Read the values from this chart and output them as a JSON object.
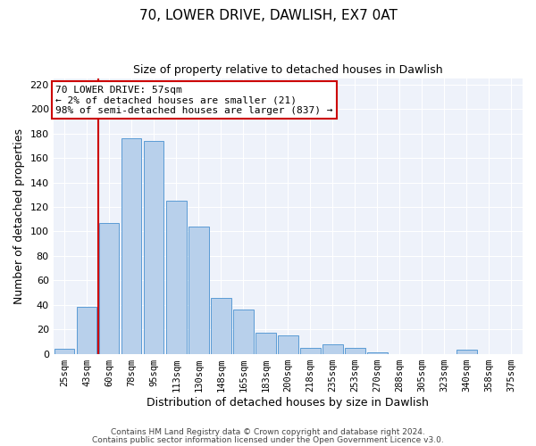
{
  "title1": "70, LOWER DRIVE, DAWLISH, EX7 0AT",
  "title2": "Size of property relative to detached houses in Dawlish",
  "xlabel": "Distribution of detached houses by size in Dawlish",
  "ylabel": "Number of detached properties",
  "bar_labels": [
    "25sqm",
    "43sqm",
    "60sqm",
    "78sqm",
    "95sqm",
    "113sqm",
    "130sqm",
    "148sqm",
    "165sqm",
    "183sqm",
    "200sqm",
    "218sqm",
    "235sqm",
    "253sqm",
    "270sqm",
    "288sqm",
    "305sqm",
    "323sqm",
    "340sqm",
    "358sqm",
    "375sqm"
  ],
  "bar_values": [
    4,
    38,
    107,
    176,
    174,
    125,
    104,
    46,
    36,
    17,
    15,
    5,
    8,
    5,
    1,
    0,
    0,
    0,
    3,
    0,
    0
  ],
  "bar_color": "#b8d0eb",
  "bar_edgecolor": "#5b9bd5",
  "vline_color": "#cc0000",
  "vline_pos": 1.5,
  "ylim": [
    0,
    225
  ],
  "yticks": [
    0,
    20,
    40,
    60,
    80,
    100,
    120,
    140,
    160,
    180,
    200,
    220
  ],
  "annotation_line1": "70 LOWER DRIVE: 57sqm",
  "annotation_line2": "← 2% of detached houses are smaller (21)",
  "annotation_line3": "98% of semi-detached houses are larger (837) →",
  "annotation_box_color": "#cc0000",
  "footer1": "Contains HM Land Registry data © Crown copyright and database right 2024.",
  "footer2": "Contains public sector information licensed under the Open Government Licence v3.0.",
  "background_color": "#eef2fa",
  "grid_color": "#ffffff"
}
